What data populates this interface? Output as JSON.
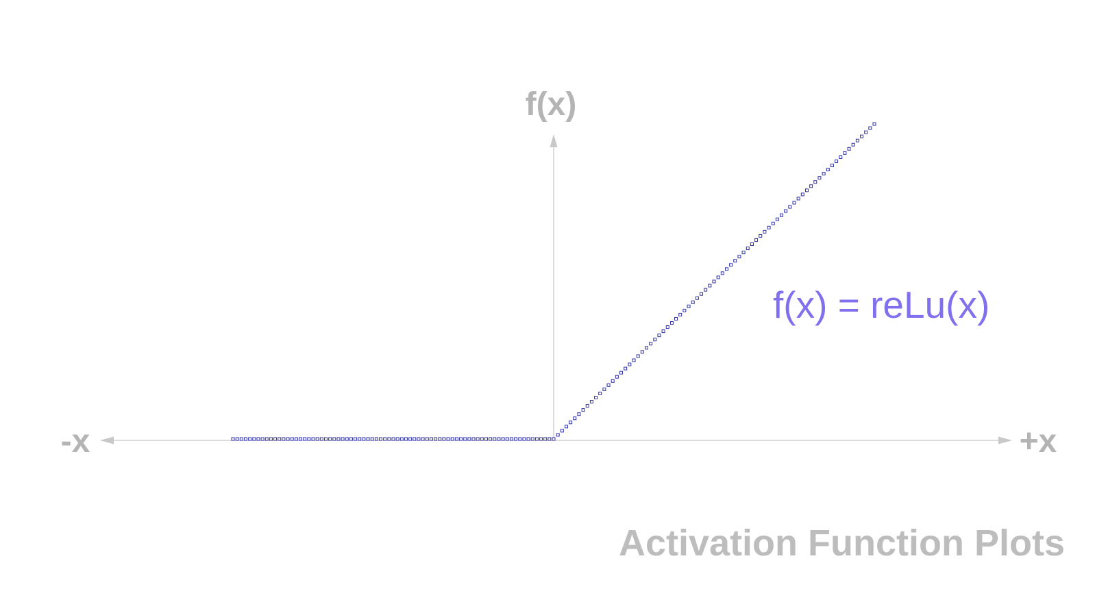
{
  "chart_data": {
    "type": "scatter",
    "title": "Activation Function Plots",
    "xlabel_negative": "-x",
    "xlabel_positive": "+x",
    "ylabel": "f(x)",
    "function_label": "f(x) = reLu(x)",
    "function": "relu",
    "x_range": [
      -1,
      1
    ],
    "point_count": 153,
    "grid": false,
    "colors": {
      "axis": "#c8c8c8",
      "axis_text": "#b4b4b4",
      "marker_stroke": "#2d2fa6",
      "function_label": "#8170ee",
      "title": "#bdbdbd"
    }
  }
}
